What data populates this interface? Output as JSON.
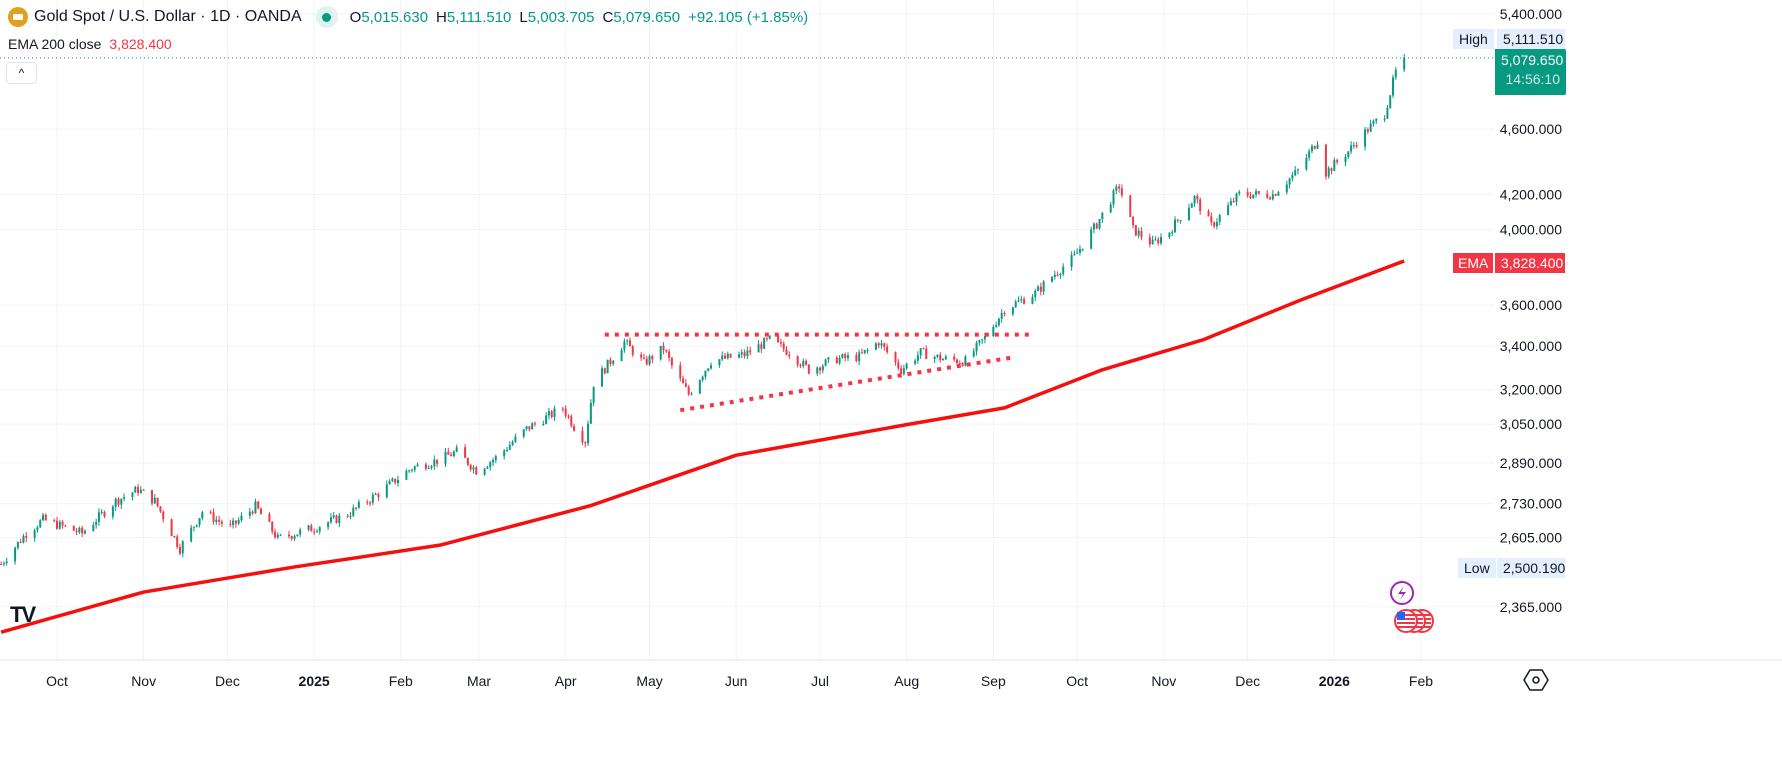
{
  "header": {
    "title": "Gold Spot / U.S. Dollar · 1D · OANDA",
    "open_label": "O",
    "open": "5,015.630",
    "high_label": "H",
    "high": "5,111.510",
    "low_label": "L",
    "low": "5,003.705",
    "close_label": "C",
    "close": "5,079.650",
    "change": "+92.105 (+1.85%)"
  },
  "indicator": {
    "label": "EMA 200 close",
    "value": "3,828.400"
  },
  "tags": {
    "high_label": "High",
    "high_value": "5,111.510",
    "low_label": "Low",
    "low_value": "2,500.190",
    "price": "5,079.650",
    "countdown": "14:56:10",
    "ema_label": "EMA",
    "ema_value": "3,828.400"
  },
  "watermark": "TV",
  "colors": {
    "up": "#089981",
    "down": "#f23645",
    "ema": "#f50f0f",
    "pattern": "#f23645"
  },
  "chart_data": {
    "type": "candlestick",
    "title": "Gold Spot / U.S. Dollar · 1D · OANDA",
    "y_scale": "log",
    "ylim": [
      2260,
      5620
    ],
    "y_ticks": [
      "5,400.000",
      "4,600.000",
      "4,200.000",
      "4,000.000",
      "3,600.000",
      "3,400.000",
      "3,200.000",
      "3,050.000",
      "2,890.000",
      "2,730.000",
      "2,605.000",
      "2,365.000"
    ],
    "y_tick_values": [
      5400,
      4600,
      4200,
      4000,
      3600,
      3400,
      3200,
      3050,
      2890,
      2730,
      2605,
      2365
    ],
    "x_ticks": [
      {
        "label": "Oct",
        "date": "2024-10-01"
      },
      {
        "label": "Nov",
        "date": "2024-11-01"
      },
      {
        "label": "Dec",
        "date": "2024-12-01"
      },
      {
        "label": "2025",
        "date": "2025-01-01",
        "bold": true
      },
      {
        "label": "Feb",
        "date": "2025-02-01"
      },
      {
        "label": "Mar",
        "date": "2025-03-01"
      },
      {
        "label": "Apr",
        "date": "2025-04-01"
      },
      {
        "label": "May",
        "date": "2025-05-01"
      },
      {
        "label": "Jun",
        "date": "2025-06-01"
      },
      {
        "label": "Jul",
        "date": "2025-07-01"
      },
      {
        "label": "Aug",
        "date": "2025-08-01"
      },
      {
        "label": "Sep",
        "date": "2025-09-01"
      },
      {
        "label": "Oct",
        "date": "2025-10-01"
      },
      {
        "label": "Nov",
        "date": "2025-11-01"
      },
      {
        "label": "Dec",
        "date": "2025-12-01"
      },
      {
        "label": "2026",
        "date": "2026-01-01",
        "bold": true
      },
      {
        "label": "Feb",
        "date": "2026-02-01"
      }
    ],
    "price_path": [
      [
        "2024-09-11",
        2510
      ],
      [
        "2024-09-20",
        2620
      ],
      [
        "2024-09-26",
        2670
      ],
      [
        "2024-10-10",
        2620
      ],
      [
        "2024-10-22",
        2740
      ],
      [
        "2024-10-30",
        2785
      ],
      [
        "2024-11-05",
        2740
      ],
      [
        "2024-11-14",
        2565
      ],
      [
        "2024-11-22",
        2700
      ],
      [
        "2024-12-02",
        2640
      ],
      [
        "2024-12-11",
        2720
      ],
      [
        "2024-12-19",
        2600
      ],
      [
        "2025-01-01",
        2640
      ],
      [
        "2025-01-13",
        2690
      ],
      [
        "2025-01-24",
        2770
      ],
      [
        "2025-02-05",
        2870
      ],
      [
        "2025-02-14",
        2900
      ],
      [
        "2025-02-21",
        2935
      ],
      [
        "2025-02-28",
        2860
      ],
      [
        "2025-03-07",
        2910
      ],
      [
        "2025-03-18",
        3030
      ],
      [
        "2025-03-31",
        3120
      ],
      [
        "2025-04-04",
        3040
      ],
      [
        "2025-04-08",
        2980
      ],
      [
        "2025-04-11",
        3230
      ],
      [
        "2025-04-17",
        3330
      ],
      [
        "2025-04-22",
        3420
      ],
      [
        "2025-04-29",
        3320
      ],
      [
        "2025-05-06",
        3390
      ],
      [
        "2025-05-10",
        3280
      ],
      [
        "2025-05-15",
        3180
      ],
      [
        "2025-05-23",
        3330
      ],
      [
        "2025-06-04",
        3360
      ],
      [
        "2025-06-13",
        3430
      ],
      [
        "2025-06-20",
        3370
      ],
      [
        "2025-06-27",
        3290
      ],
      [
        "2025-07-07",
        3340
      ],
      [
        "2025-07-15",
        3350
      ],
      [
        "2025-07-22",
        3420
      ],
      [
        "2025-07-30",
        3290
      ],
      [
        "2025-08-06",
        3370
      ],
      [
        "2025-08-14",
        3340
      ],
      [
        "2025-08-22",
        3330
      ],
      [
        "2025-08-29",
        3440
      ],
      [
        "2025-09-05",
        3580
      ],
      [
        "2025-09-16",
        3660
      ],
      [
        "2025-09-23",
        3760
      ],
      [
        "2025-09-30",
        3850
      ],
      [
        "2025-10-08",
        4030
      ],
      [
        "2025-10-16",
        4250
      ],
      [
        "2025-10-21",
        4000
      ],
      [
        "2025-10-28",
        3920
      ],
      [
        "2025-11-03",
        3990
      ],
      [
        "2025-11-12",
        4180
      ],
      [
        "2025-11-18",
        4020
      ],
      [
        "2025-11-28",
        4200
      ],
      [
        "2025-12-10",
        4200
      ],
      [
        "2025-12-19",
        4340
      ],
      [
        "2025-12-26",
        4530
      ],
      [
        "2025-12-29",
        4330
      ],
      [
        "2026-01-06",
        4460
      ],
      [
        "2026-01-13",
        4600
      ],
      [
        "2026-01-19",
        4700
      ],
      [
        "2026-01-23",
        4980
      ],
      [
        "2026-01-26",
        5079.65
      ]
    ],
    "ema200": [
      [
        "2024-09-11",
        2283
      ],
      [
        "2024-11-01",
        2414
      ],
      [
        "2024-12-25",
        2500
      ],
      [
        "2025-02-15",
        2577
      ],
      [
        "2025-04-10",
        2723
      ],
      [
        "2025-06-01",
        2921
      ],
      [
        "2025-08-01",
        3048
      ],
      [
        "2025-09-05",
        3120
      ],
      [
        "2025-10-10",
        3290
      ],
      [
        "2025-11-15",
        3430
      ],
      [
        "2025-12-20",
        3626
      ],
      [
        "2026-01-26",
        3828.4
      ]
    ],
    "annotations": [
      {
        "type": "dotted-line",
        "name": "resistance",
        "from": [
          "2025-04-18",
          3455
        ],
        "to": null
      }
    ]
  }
}
